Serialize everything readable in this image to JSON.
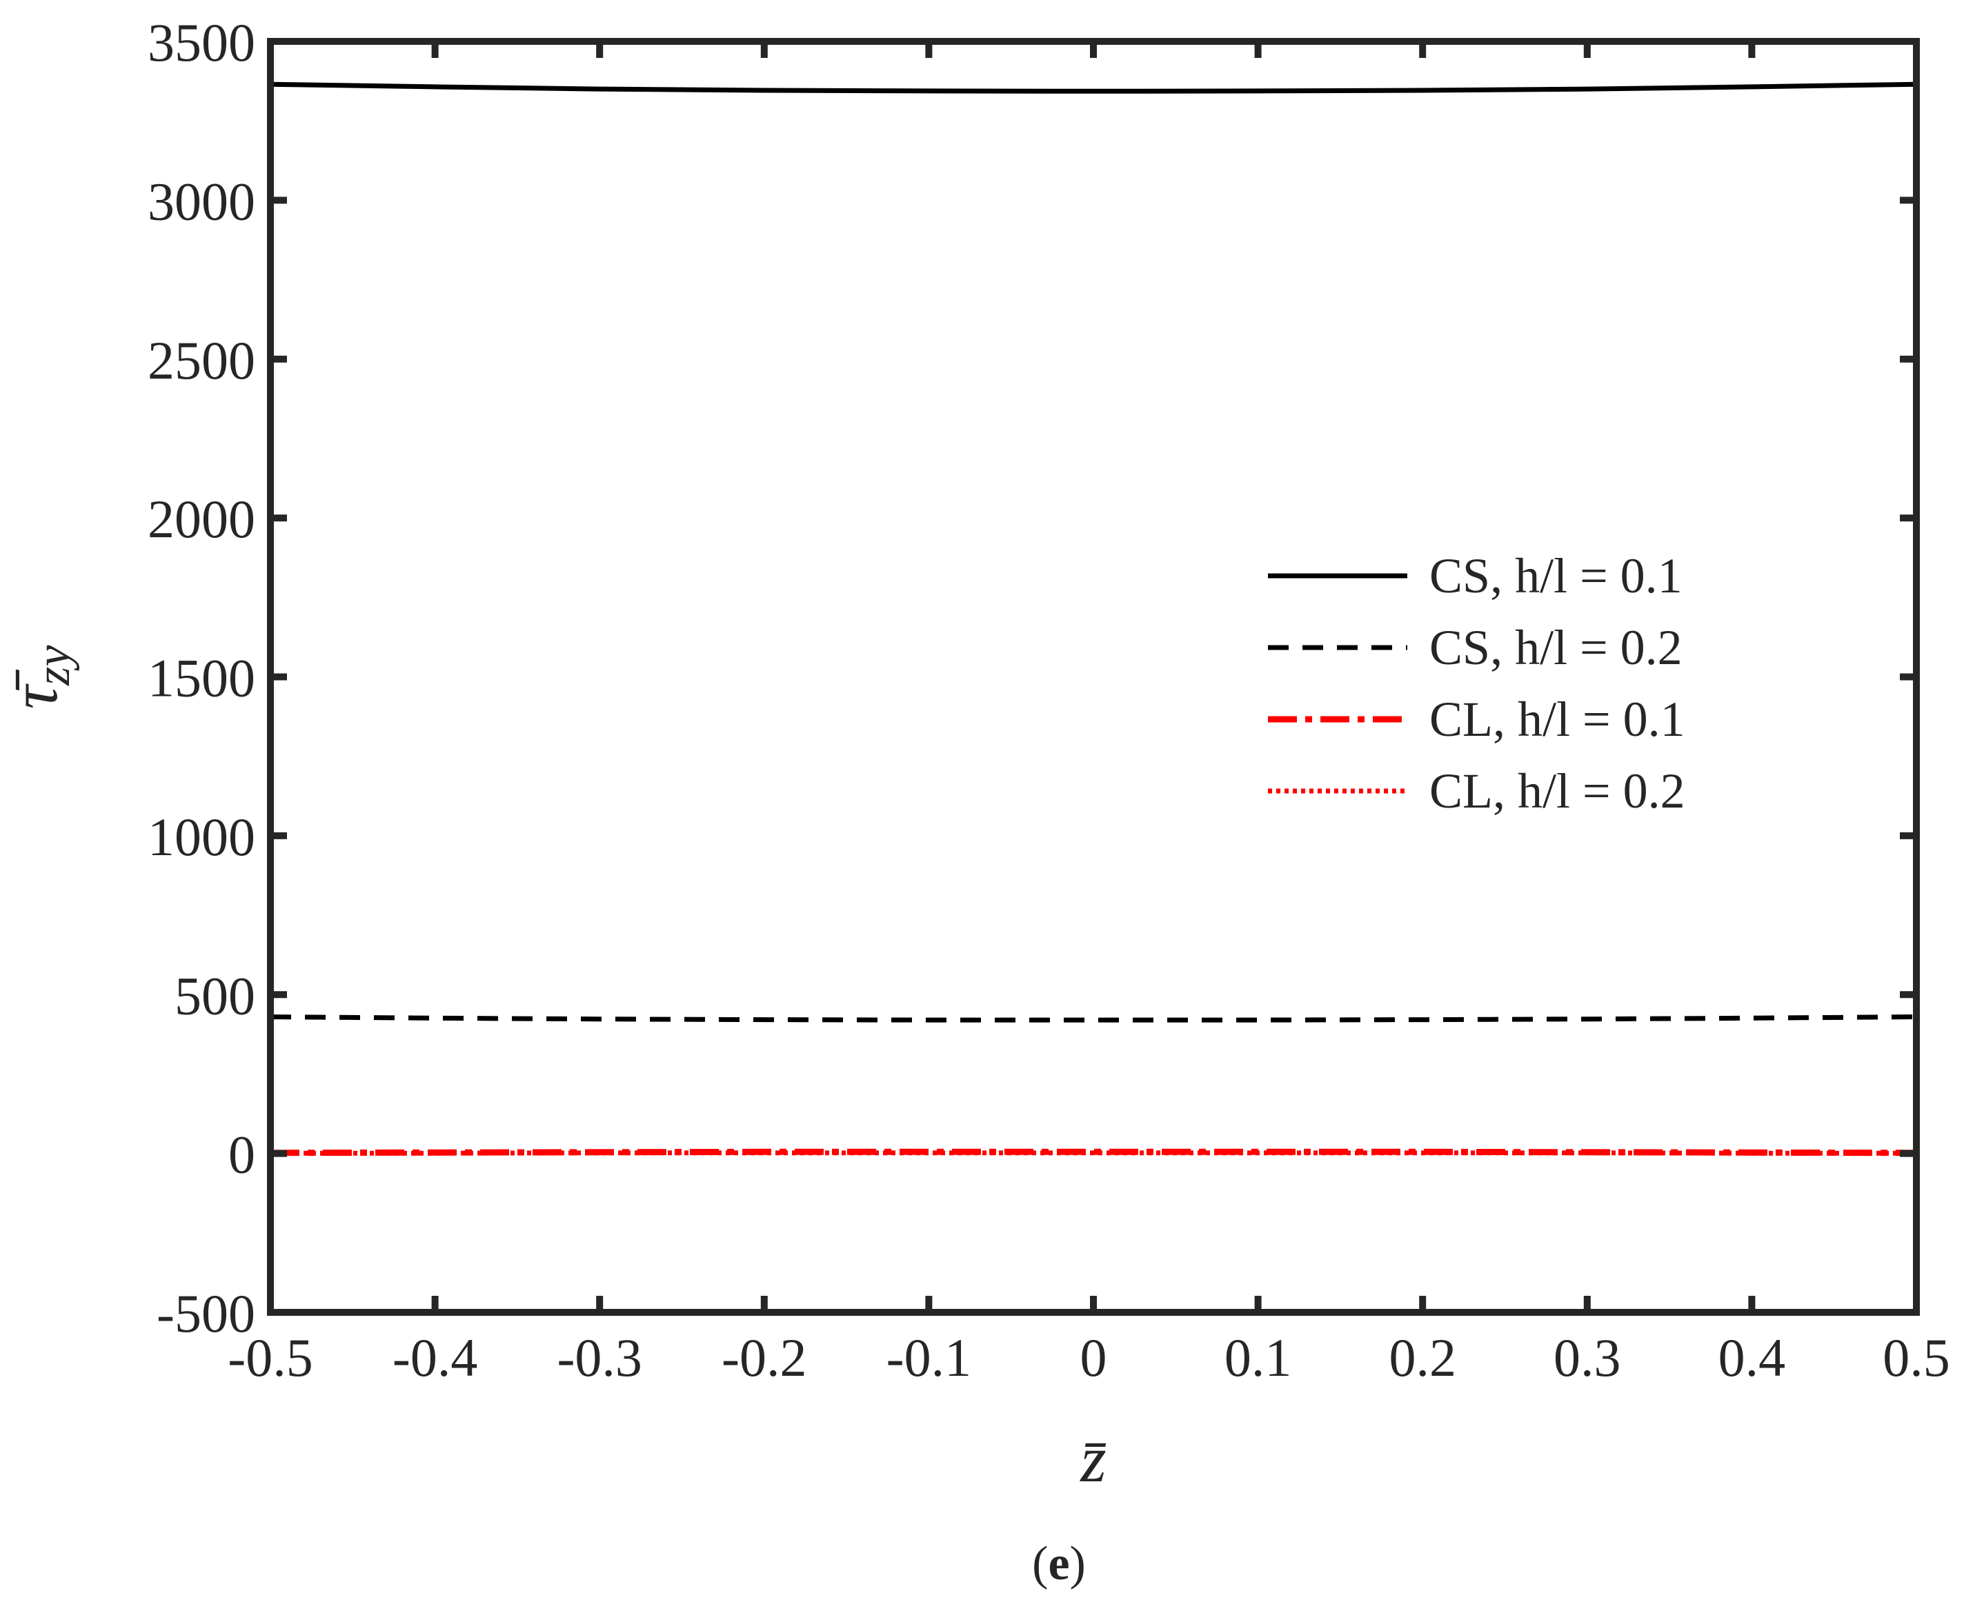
{
  "chart_data": {
    "type": "line",
    "xlabel": "z̄",
    "ylabel": "τ̄",
    "ylabel_subscript": "zy",
    "panel_label": "e",
    "xlim": [
      -0.5,
      0.5
    ],
    "ylim": [
      -500,
      3500
    ],
    "x_ticks": [
      -0.5,
      -0.4,
      -0.3,
      -0.2,
      -0.1,
      0,
      0.1,
      0.2,
      0.3,
      0.4,
      0.5
    ],
    "y_ticks": [
      -500,
      0,
      500,
      1000,
      1500,
      2000,
      2500,
      3000,
      3500
    ],
    "x_tick_labels": [
      "-0.5",
      "-0.4",
      "-0.3",
      "-0.2",
      "-0.1",
      "0",
      "0.1",
      "0.2",
      "0.3",
      "0.4",
      "0.5"
    ],
    "y_tick_labels": [
      "-500",
      "0",
      "500",
      "1000",
      "1500",
      "2000",
      "2500",
      "3000",
      "3500"
    ],
    "grid": false,
    "legend_position": "right",
    "x": [
      -0.5,
      -0.4,
      -0.3,
      -0.2,
      -0.1,
      0,
      0.1,
      0.2,
      0.3,
      0.4,
      0.5
    ],
    "series": [
      {
        "name": "CS, h/l = 0.1",
        "color": "#000000",
        "style": "solid",
        "values": [
          3365,
          3357,
          3350,
          3346,
          3344,
          3343,
          3344,
          3346,
          3350,
          3357,
          3365
        ]
      },
      {
        "name": "CS, h/l = 0.2",
        "color": "#000000",
        "style": "dashed",
        "values": [
          430,
          426,
          423,
          421,
          420,
          420,
          420,
          421,
          423,
          426,
          430
        ]
      },
      {
        "name": "CL, h/l = 0.1",
        "color": "#ff0000",
        "style": "dashdot",
        "values": [
          2,
          3,
          4,
          5,
          5,
          5,
          5,
          5,
          4,
          3,
          2
        ]
      },
      {
        "name": "CL, h/l = 0.2",
        "color": "#ff0000",
        "style": "dotted",
        "values": [
          1,
          1,
          2,
          2,
          2,
          2,
          2,
          2,
          2,
          1,
          1
        ]
      }
    ]
  }
}
